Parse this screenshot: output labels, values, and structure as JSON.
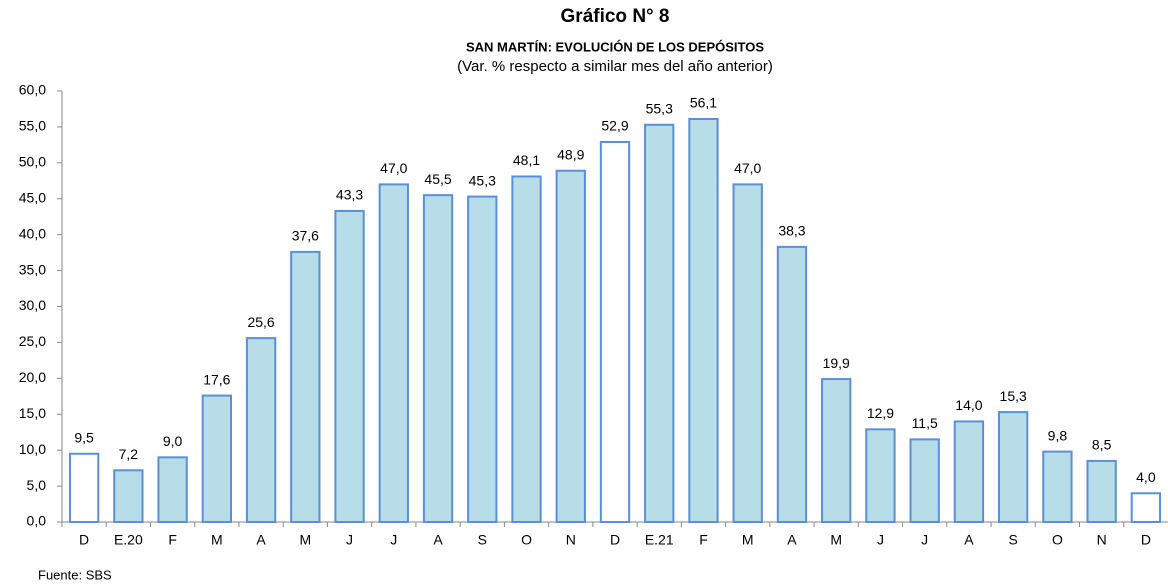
{
  "chart_data": {
    "type": "bar",
    "title": "Gráfico N° 8",
    "subtitle": "SAN MARTÍN: EVOLUCIÓN DE LOS DEPÓSITOS",
    "note": "(Var. % respecto a similar mes del año anterior)",
    "source": "Fuente: SBS",
    "categories": [
      "D",
      "E.20",
      "F",
      "M",
      "A",
      "M",
      "J",
      "J",
      "A",
      "S",
      "O",
      "N",
      "D",
      "E.21",
      "F",
      "M",
      "A",
      "M",
      "J",
      "J",
      "A",
      "S",
      "O",
      "N",
      "D"
    ],
    "values": [
      9.5,
      7.2,
      9.0,
      17.6,
      25.6,
      37.6,
      43.3,
      47.0,
      45.5,
      45.3,
      48.1,
      48.9,
      52.9,
      55.3,
      56.1,
      47.0,
      38.3,
      19.9,
      12.9,
      11.5,
      14.0,
      15.3,
      9.8,
      8.5,
      4.0
    ],
    "value_labels": [
      "9,5",
      "7,2",
      "9,0",
      "17,6",
      "25,6",
      "37,6",
      "43,3",
      "47,0",
      "45,5",
      "45,3",
      "48,1",
      "48,9",
      "52,9",
      "55,3",
      "56,1",
      "47,0",
      "38,3",
      "19,9",
      "12,9",
      "11,5",
      "14,0",
      "15,3",
      "9,8",
      "8,5",
      "4,0"
    ],
    "colors": [
      "#ffffff",
      "#b7dde8",
      "#b7dde8",
      "#b7dde8",
      "#b7dde8",
      "#b7dde8",
      "#b7dde8",
      "#b7dde8",
      "#b7dde8",
      "#b7dde8",
      "#b7dde8",
      "#b7dde8",
      "#ffffff",
      "#b7dde8",
      "#b7dde8",
      "#b7dde8",
      "#b7dde8",
      "#b7dde8",
      "#b7dde8",
      "#b7dde8",
      "#b7dde8",
      "#b7dde8",
      "#b7dde8",
      "#b7dde8",
      "#ffffff"
    ],
    "edge_color": "#5b8fd6",
    "ylim": [
      0,
      60
    ],
    "yticks": [
      {
        "value": 0,
        "label": "0,0"
      },
      {
        "value": 5,
        "label": "5,0"
      },
      {
        "value": 10,
        "label": "10,0"
      },
      {
        "value": 15,
        "label": "15,0"
      },
      {
        "value": 20,
        "label": "20,0"
      },
      {
        "value": 25,
        "label": "25,0"
      },
      {
        "value": 30,
        "label": "30,0"
      },
      {
        "value": 35,
        "label": "35,0"
      },
      {
        "value": 40,
        "label": "40,0"
      },
      {
        "value": 45,
        "label": "45,0"
      },
      {
        "value": 50,
        "label": "50,0"
      },
      {
        "value": 55,
        "label": "55,0"
      },
      {
        "value": 60,
        "label": "60,0"
      }
    ],
    "grid": false
  }
}
